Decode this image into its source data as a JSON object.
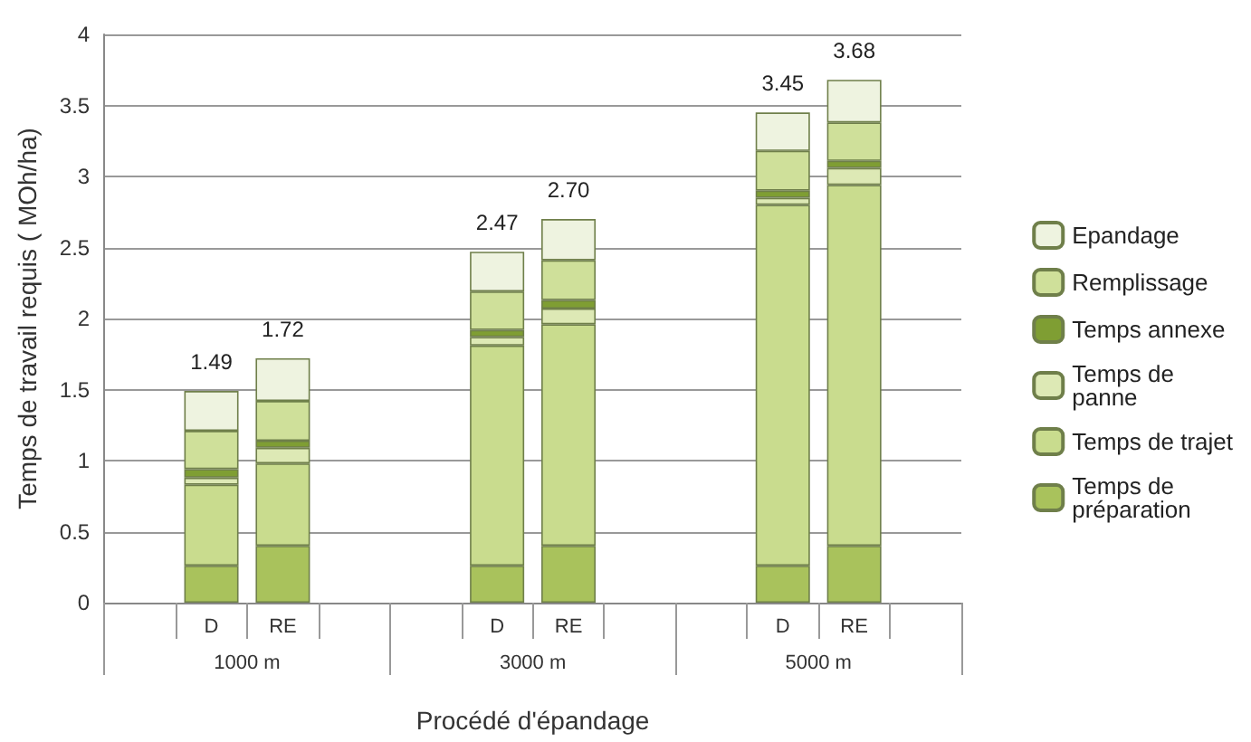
{
  "chart_data": {
    "type": "bar",
    "stacked": true,
    "xlabel": "Procédé d'épandage",
    "ylabel": "Temps de travail requis ( MOh/ha)",
    "categories": [
      null,
      "D",
      "RE",
      null,
      null,
      "D",
      "RE",
      null,
      null,
      "D",
      "RE",
      null
    ],
    "annotations": [
      "1000 m",
      "3000 m",
      "5000 m"
    ],
    "series": [
      {
        "name": "Temps de préparation",
        "color": "#a9c25c",
        "values": [
          null,
          0.26,
          0.4,
          null,
          null,
          0.26,
          0.4,
          null,
          null,
          0.26,
          0.4,
          null
        ]
      },
      {
        "name": "Temps de trajet",
        "color": "#c9dc8e",
        "values": [
          null,
          0.57,
          0.58,
          null,
          null,
          1.55,
          1.56,
          null,
          null,
          2.54,
          2.54,
          null
        ]
      },
      {
        "name": "Temps de panne",
        "color": "#dde9b5",
        "values": [
          null,
          0.05,
          0.11,
          null,
          null,
          0.06,
          0.11,
          null,
          null,
          0.05,
          0.12,
          null
        ]
      },
      {
        "name": "Temps annexe",
        "color": "#7f9e33",
        "values": [
          null,
          0.06,
          0.05,
          null,
          null,
          0.05,
          0.06,
          null,
          null,
          0.05,
          0.05,
          null
        ]
      },
      {
        "name": "Remplissage",
        "color": "#cfe09a",
        "values": [
          null,
          0.27,
          0.28,
          null,
          null,
          0.27,
          0.28,
          null,
          null,
          0.28,
          0.27,
          null
        ]
      },
      {
        "name": "Epandage",
        "color": "#eef3e0",
        "values": [
          null,
          0.28,
          0.3,
          null,
          null,
          0.28,
          0.29,
          null,
          null,
          0.27,
          0.3,
          null
        ]
      }
    ],
    "totals": [
      null,
      "1.49",
      "1.72",
      null,
      null,
      "2.47",
      "2.70",
      null,
      null,
      "3.45",
      "3.68",
      null
    ],
    "ylim": [
      0,
      4
    ],
    "yticks": [
      0,
      0.5,
      1,
      1.5,
      2,
      2.5,
      3,
      3.5,
      4
    ],
    "grid": "y",
    "legend": "right"
  }
}
